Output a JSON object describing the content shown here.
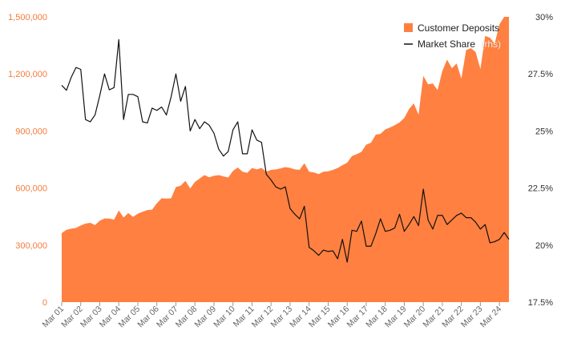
{
  "chart_data": {
    "type": "area+line",
    "title": "",
    "colors": {
      "deposits": "#ff8040",
      "market_share": "#111111",
      "left_axis_text": "#f47b3c",
      "right_axis_text": "#333333",
      "x_axis_text": "#666666"
    },
    "legend": {
      "position": "top-right",
      "items": [
        {
          "name": "Customer Deposits",
          "label": "Customer Deposits",
          "suffix": "",
          "symbol": "square",
          "color": "#ff8040"
        },
        {
          "name": "Market Share",
          "label": "Market Share",
          "suffix": "(rhs)",
          "symbol": "line",
          "color": "#111111"
        }
      ]
    },
    "left_axis": {
      "min": 0,
      "max": 1500000,
      "ticks": [
        0,
        300000,
        600000,
        900000,
        1200000,
        1500000
      ],
      "tick_labels": [
        "0",
        "300,000",
        "600,000",
        "900,000",
        "1,200,000",
        "1,500,000"
      ]
    },
    "right_axis": {
      "min": 17.5,
      "max": 30,
      "ticks": [
        17.5,
        20,
        22.5,
        25,
        27.5,
        30
      ],
      "tick_labels": [
        "17.5%",
        "20%",
        "22.5%",
        "25%",
        "27.5%",
        "30%"
      ]
    },
    "x_axis": {
      "start": 2001,
      "end": 2024.75,
      "ticks": [
        2001,
        2002,
        2003,
        2004,
        2005,
        2006,
        2007,
        2008,
        2009,
        2010,
        2011,
        2012,
        2013,
        2014,
        2015,
        2016,
        2017,
        2018,
        2019,
        2020,
        2021,
        2022,
        2023,
        2024
      ],
      "tick_labels": [
        "Mar 01",
        "Mar 02",
        "Mar 03",
        "Mar 04",
        "Mar 05",
        "Mar 06",
        "Mar 07",
        "Mar 08",
        "Mar 09",
        "Mar 10",
        "Mar 11",
        "Mar 12",
        "Mar 13",
        "Mar 14",
        "Mar 15",
        "Mar 16",
        "Mar 17",
        "Mar 18",
        "Mar 19",
        "Mar 20",
        "Mar 21",
        "Mar 22",
        "Mar 23",
        "Mar 24"
      ]
    },
    "series": [
      {
        "name": "Customer Deposits",
        "axis": "left",
        "style": "area",
        "values": [
          [
            2001.0,
            363000
          ],
          [
            2001.25,
            380000
          ],
          [
            2001.5,
            386000
          ],
          [
            2001.75,
            390000
          ],
          [
            2002.0,
            403000
          ],
          [
            2002.25,
            413000
          ],
          [
            2002.5,
            417000
          ],
          [
            2002.75,
            405000
          ],
          [
            2003.0,
            428000
          ],
          [
            2003.25,
            440000
          ],
          [
            2003.5,
            439000
          ],
          [
            2003.75,
            434000
          ],
          [
            2004.0,
            482000
          ],
          [
            2004.25,
            445000
          ],
          [
            2004.5,
            468000
          ],
          [
            2004.75,
            448000
          ],
          [
            2005.0,
            465000
          ],
          [
            2005.25,
            475000
          ],
          [
            2005.5,
            484000
          ],
          [
            2005.75,
            486000
          ],
          [
            2006.0,
            520000
          ],
          [
            2006.25,
            546000
          ],
          [
            2006.5,
            544000
          ],
          [
            2006.75,
            546000
          ],
          [
            2007.0,
            605000
          ],
          [
            2007.25,
            612000
          ],
          [
            2007.5,
            638000
          ],
          [
            2007.75,
            597000
          ],
          [
            2008.0,
            632000
          ],
          [
            2008.25,
            650000
          ],
          [
            2008.5,
            668000
          ],
          [
            2008.75,
            656000
          ],
          [
            2009.0,
            664000
          ],
          [
            2009.25,
            668000
          ],
          [
            2009.5,
            661000
          ],
          [
            2009.75,
            655000
          ],
          [
            2010.0,
            690000
          ],
          [
            2010.25,
            708000
          ],
          [
            2010.5,
            686000
          ],
          [
            2010.75,
            680000
          ],
          [
            2011.0,
            705000
          ],
          [
            2011.25,
            698000
          ],
          [
            2011.5,
            706000
          ],
          [
            2011.75,
            686000
          ],
          [
            2012.0,
            695000
          ],
          [
            2012.25,
            698000
          ],
          [
            2012.5,
            703000
          ],
          [
            2012.75,
            710000
          ],
          [
            2013.0,
            706000
          ],
          [
            2013.25,
            698000
          ],
          [
            2013.5,
            696000
          ],
          [
            2013.75,
            730000
          ],
          [
            2014.0,
            686000
          ],
          [
            2014.25,
            682000
          ],
          [
            2014.5,
            673000
          ],
          [
            2014.75,
            686000
          ],
          [
            2015.0,
            688000
          ],
          [
            2015.25,
            695000
          ],
          [
            2015.5,
            705000
          ],
          [
            2015.75,
            720000
          ],
          [
            2016.0,
            733000
          ],
          [
            2016.25,
            768000
          ],
          [
            2016.5,
            778000
          ],
          [
            2016.75,
            790000
          ],
          [
            2017.0,
            828000
          ],
          [
            2017.25,
            838000
          ],
          [
            2017.5,
            880000
          ],
          [
            2017.75,
            885000
          ],
          [
            2018.0,
            908000
          ],
          [
            2018.25,
            918000
          ],
          [
            2018.5,
            930000
          ],
          [
            2018.75,
            945000
          ],
          [
            2019.0,
            968000
          ],
          [
            2019.25,
            1015000
          ],
          [
            2019.5,
            1045000
          ],
          [
            2019.75,
            985000
          ],
          [
            2020.0,
            1190000
          ],
          [
            2020.25,
            1145000
          ],
          [
            2020.5,
            1150000
          ],
          [
            2020.75,
            1115000
          ],
          [
            2021.0,
            1215000
          ],
          [
            2021.25,
            1275000
          ],
          [
            2021.5,
            1230000
          ],
          [
            2021.75,
            1255000
          ],
          [
            2022.0,
            1175000
          ],
          [
            2022.25,
            1325000
          ],
          [
            2022.5,
            1335000
          ],
          [
            2022.75,
            1315000
          ],
          [
            2023.0,
            1225000
          ],
          [
            2023.25,
            1400000
          ],
          [
            2023.5,
            1390000
          ],
          [
            2023.75,
            1360000
          ],
          [
            2024.0,
            1460000
          ],
          [
            2024.25,
            1500000
          ],
          [
            2024.5,
            1500000
          ]
        ]
      },
      {
        "name": "Market Share",
        "axis": "right",
        "style": "line",
        "values": [
          [
            2001.0,
            27.0
          ],
          [
            2001.25,
            26.78
          ],
          [
            2001.5,
            27.35
          ],
          [
            2001.75,
            27.78
          ],
          [
            2002.0,
            27.7
          ],
          [
            2002.25,
            25.5
          ],
          [
            2002.5,
            25.4
          ],
          [
            2002.75,
            25.7
          ],
          [
            2003.0,
            26.55
          ],
          [
            2003.25,
            27.5
          ],
          [
            2003.5,
            26.8
          ],
          [
            2003.75,
            26.9
          ],
          [
            2004.0,
            29.0
          ],
          [
            2004.25,
            25.5
          ],
          [
            2004.5,
            26.6
          ],
          [
            2004.75,
            26.6
          ],
          [
            2005.0,
            26.5
          ],
          [
            2005.25,
            25.4
          ],
          [
            2005.5,
            25.35
          ],
          [
            2005.75,
            26.0
          ],
          [
            2006.0,
            25.9
          ],
          [
            2006.25,
            26.05
          ],
          [
            2006.5,
            25.7
          ],
          [
            2006.75,
            26.5
          ],
          [
            2007.0,
            27.5
          ],
          [
            2007.25,
            26.3
          ],
          [
            2007.5,
            26.95
          ],
          [
            2007.75,
            25.0
          ],
          [
            2008.0,
            25.5
          ],
          [
            2008.25,
            25.1
          ],
          [
            2008.5,
            25.4
          ],
          [
            2008.75,
            25.25
          ],
          [
            2009.0,
            24.9
          ],
          [
            2009.25,
            24.2
          ],
          [
            2009.5,
            23.9
          ],
          [
            2009.75,
            24.1
          ],
          [
            2010.0,
            25.05
          ],
          [
            2010.25,
            25.4
          ],
          [
            2010.5,
            24.0
          ],
          [
            2010.75,
            24.0
          ],
          [
            2011.0,
            25.05
          ],
          [
            2011.25,
            24.6
          ],
          [
            2011.5,
            24.5
          ],
          [
            2011.75,
            23.1
          ],
          [
            2012.0,
            22.85
          ],
          [
            2012.25,
            22.55
          ],
          [
            2012.5,
            22.45
          ],
          [
            2012.75,
            22.55
          ],
          [
            2013.0,
            21.6
          ],
          [
            2013.25,
            21.35
          ],
          [
            2013.5,
            21.15
          ],
          [
            2013.75,
            21.7
          ],
          [
            2014.0,
            19.9
          ],
          [
            2014.25,
            19.75
          ],
          [
            2014.5,
            19.55
          ],
          [
            2014.75,
            19.78
          ],
          [
            2015.0,
            19.72
          ],
          [
            2015.25,
            19.75
          ],
          [
            2015.5,
            19.4
          ],
          [
            2015.75,
            20.25
          ],
          [
            2016.0,
            19.25
          ],
          [
            2016.25,
            20.65
          ],
          [
            2016.5,
            20.6
          ],
          [
            2016.75,
            21.05
          ],
          [
            2017.0,
            19.95
          ],
          [
            2017.25,
            19.95
          ],
          [
            2017.5,
            20.5
          ],
          [
            2017.75,
            21.15
          ],
          [
            2018.0,
            20.6
          ],
          [
            2018.25,
            20.65
          ],
          [
            2018.5,
            20.75
          ],
          [
            2018.75,
            21.35
          ],
          [
            2019.0,
            20.6
          ],
          [
            2019.25,
            20.9
          ],
          [
            2019.5,
            21.25
          ],
          [
            2019.75,
            20.85
          ],
          [
            2020.0,
            22.45
          ],
          [
            2020.25,
            21.1
          ],
          [
            2020.5,
            20.7
          ],
          [
            2020.75,
            21.3
          ],
          [
            2021.0,
            21.3
          ],
          [
            2021.25,
            20.9
          ],
          [
            2021.5,
            21.1
          ],
          [
            2021.75,
            21.3
          ],
          [
            2022.0,
            21.4
          ],
          [
            2022.25,
            21.2
          ],
          [
            2022.5,
            21.2
          ],
          [
            2022.75,
            21.0
          ],
          [
            2023.0,
            20.7
          ],
          [
            2023.25,
            20.9
          ],
          [
            2023.5,
            20.1
          ],
          [
            2023.75,
            20.15
          ],
          [
            2024.0,
            20.25
          ],
          [
            2024.25,
            20.55
          ],
          [
            2024.5,
            20.25
          ]
        ]
      }
    ]
  }
}
